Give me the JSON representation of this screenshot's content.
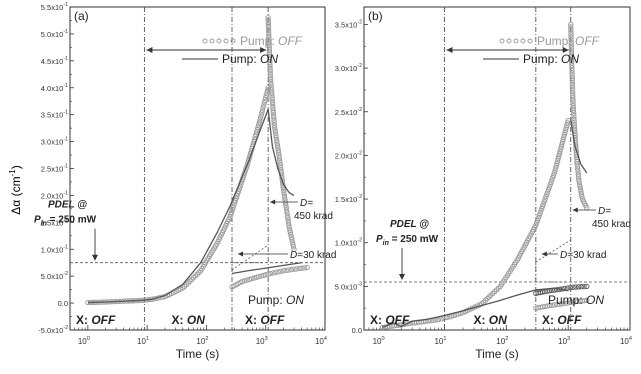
{
  "figure": {
    "ylabel_prefix": "Δα (cm",
    "ylabel_exp": "-1",
    "ylabel_suffix": ")"
  },
  "chart_data": [
    {
      "panel_label": "(a)",
      "type": "line",
      "xlabel": "Time (s)",
      "x_scale": "log",
      "xlim": [
        0.5,
        10000
      ],
      "x_tick_labels": [
        {
          "x": 1,
          "base": "10",
          "exp": "0"
        },
        {
          "x": 10,
          "base": "10",
          "exp": "1"
        },
        {
          "x": 100,
          "base": "10",
          "exp": "2"
        },
        {
          "x": 1000,
          "base": "10",
          "exp": "3"
        },
        {
          "x": 10000,
          "base": "10",
          "exp": "4"
        }
      ],
      "ylim": [
        -0.05,
        0.55
      ],
      "y_tick_labels": [
        {
          "y": -0.05,
          "mant": "-5.0x10",
          "exp": "-2"
        },
        {
          "y": 0.0,
          "mant": "0.0",
          "exp": ""
        },
        {
          "y": 0.05,
          "mant": "5.0x10",
          "exp": "-2"
        },
        {
          "y": 0.1,
          "mant": "1.0x10",
          "exp": "-1"
        },
        {
          "y": 0.15,
          "mant": "1.5x10",
          "exp": "-1"
        },
        {
          "y": 0.2,
          "mant": "2.0x10",
          "exp": "-1"
        },
        {
          "y": 0.25,
          "mant": "2.5x10",
          "exp": "-1"
        },
        {
          "y": 0.3,
          "mant": "3.0x10",
          "exp": "-1"
        },
        {
          "y": 0.35,
          "mant": "3.5x10",
          "exp": "-1"
        },
        {
          "y": 0.4,
          "mant": "4.0x10",
          "exp": "-1"
        },
        {
          "y": 0.45,
          "mant": "4.5x10",
          "exp": "-1"
        },
        {
          "y": 0.5,
          "mant": "5.0x10",
          "exp": "-1"
        },
        {
          "y": 0.55,
          "mant": "5.5x10",
          "exp": "-1"
        }
      ],
      "vlines_x": [
        9,
        270,
        1100
      ],
      "hline_y": 0.075,
      "series": [
        {
          "name": "Pump: OFF",
          "style": "markers",
          "color": "#9a9a9a",
          "x": [
            1,
            2,
            3,
            5,
            8,
            12,
            20,
            40,
            80,
            150,
            250,
            500,
            800,
            1100
          ],
          "y": [
            0.001,
            0.002,
            0.003,
            0.004,
            0.005,
            0.007,
            0.012,
            0.028,
            0.06,
            0.11,
            0.16,
            0.26,
            0.34,
            0.4
          ]
        },
        {
          "name": "Pump: ON",
          "style": "line",
          "color": "#555555",
          "x": [
            1,
            2,
            3,
            5,
            8,
            12,
            20,
            40,
            80,
            150,
            250,
            500,
            800,
            1100
          ],
          "y": [
            0.001,
            0.002,
            0.003,
            0.004,
            0.005,
            0.007,
            0.014,
            0.035,
            0.075,
            0.13,
            0.18,
            0.26,
            0.32,
            0.36
          ]
        },
        {
          "name": "",
          "style": "markers",
          "color": "#9a9a9a",
          "x": [
            1100,
            1200,
            1400,
            1700,
            2000,
            2500,
            3000
          ],
          "y": [
            0.53,
            0.42,
            0.33,
            0.27,
            0.21,
            0.14,
            0.1
          ]
        },
        {
          "name": "",
          "style": "line",
          "color": "#555555",
          "x": [
            1100,
            1300,
            1600,
            2000,
            2500,
            3000
          ],
          "y": [
            0.36,
            0.29,
            0.25,
            0.22,
            0.205,
            0.2
          ]
        },
        {
          "name": "",
          "style": "line",
          "color": "#555555",
          "x": [
            270,
            500,
            1000,
            2000,
            4000
          ],
          "y": [
            0.055,
            0.06,
            0.065,
            0.07,
            0.075
          ]
        },
        {
          "name": "",
          "style": "markers",
          "color": "#9a9a9a",
          "x": [
            270,
            400,
            700,
            1200,
            2000,
            3000,
            5000
          ],
          "y": [
            0.03,
            0.04,
            0.048,
            0.055,
            0.06,
            0.063,
            0.066
          ]
        }
      ],
      "annotations": {
        "pump_off": {
          "label": "Pump: ",
          "value": "OFF"
        },
        "pump_on": {
          "label": "Pump: ",
          "value": "ON"
        },
        "pdel_1": "PDEL @",
        "pdel_2_sym": "P",
        "pdel_2_sub": "in",
        "pdel_2_val": " = 250 mW",
        "dose_high_1": "D=",
        "dose_high_2": "450 krad",
        "dose_low": "D=30 krad",
        "pump_on_lower": "Pump: ON",
        "x_off_left": "X: OFF",
        "x_on": "X: ON",
        "x_off_right": "X: OFF"
      }
    },
    {
      "panel_label": "(b)",
      "type": "line",
      "xlabel": "Time (s)",
      "x_scale": "log",
      "xlim": [
        0.5,
        10000
      ],
      "x_tick_labels": [
        {
          "x": 1,
          "base": "10",
          "exp": "0"
        },
        {
          "x": 10,
          "base": "10",
          "exp": "1"
        },
        {
          "x": 100,
          "base": "10",
          "exp": "2"
        },
        {
          "x": 1000,
          "base": "10",
          "exp": "3"
        },
        {
          "x": 10000,
          "base": "10",
          "exp": "4"
        }
      ],
      "ylim": [
        0,
        0.037
      ],
      "y_tick_labels": [
        {
          "y": 0.0,
          "mant": "0.0",
          "exp": ""
        },
        {
          "y": 0.005,
          "mant": "5.0x10",
          "exp": "-3"
        },
        {
          "y": 0.01,
          "mant": "1.0x10",
          "exp": "-2"
        },
        {
          "y": 0.015,
          "mant": "1.5x10",
          "exp": "-2"
        },
        {
          "y": 0.02,
          "mant": "2.0x10",
          "exp": "-2"
        },
        {
          "y": 0.025,
          "mant": "2.5x10",
          "exp": "-2"
        },
        {
          "y": 0.03,
          "mant": "3.0x10",
          "exp": "-2"
        },
        {
          "y": 0.035,
          "mant": "3.5x10",
          "exp": "-2"
        }
      ],
      "vlines_x": [
        10,
        300,
        1100
      ],
      "hline_y": 0.0055,
      "series": [
        {
          "name": "Pump: OFF",
          "style": "markers",
          "color": "#9a9a9a",
          "x": [
            1,
            2,
            3,
            5,
            8,
            12,
            20,
            40,
            80,
            150,
            300,
            600,
            1000
          ],
          "y": [
            0.0003,
            0.0006,
            0.0008,
            0.001,
            0.0012,
            0.0015,
            0.002,
            0.003,
            0.005,
            0.008,
            0.012,
            0.018,
            0.024
          ]
        },
        {
          "name": "Pump: ON",
          "style": "line",
          "color": "#555555",
          "x": [
            1,
            1.5,
            2,
            3,
            5,
            8,
            12,
            20,
            40,
            80,
            150,
            300,
            600,
            1000
          ],
          "y": [
            0.0003,
            0.0008,
            0.0004,
            0.001,
            0.0012,
            0.0015,
            0.0018,
            0.0022,
            0.0028,
            0.0034,
            0.004,
            0.0046,
            0.0048,
            0.0045
          ]
        },
        {
          "name": "",
          "style": "markers",
          "color": "#9a9a9a",
          "x": [
            1100,
            1150,
            1200,
            1300,
            1400,
            1500,
            1700,
            2000
          ],
          "y": [
            0.035,
            0.03,
            0.026,
            0.022,
            0.019,
            0.017,
            0.015,
            0.014
          ]
        },
        {
          "name": "",
          "style": "line",
          "color": "#555555",
          "x": [
            1100,
            1300,
            1600,
            2000
          ],
          "y": [
            0.024,
            0.021,
            0.019,
            0.018
          ]
        },
        {
          "name": "",
          "style": "markers",
          "color": "#9a9a9a",
          "x": [
            300,
            500,
            800,
            1200,
            2000
          ],
          "y": [
            0.0025,
            0.0028,
            0.003,
            0.0032,
            0.0034
          ]
        },
        {
          "name": "",
          "style": "markers",
          "color": "#555555",
          "x": [
            300,
            500,
            800,
            1200,
            2000
          ],
          "y": [
            0.0042,
            0.0045,
            0.0047,
            0.0049,
            0.005
          ]
        }
      ],
      "annotations": {
        "pump_off": {
          "label": "Pump: ",
          "value": "OFF"
        },
        "pump_on": {
          "label": "Pump: ",
          "value": "ON"
        },
        "pdel_1": "PDEL @",
        "pdel_2_sym": "P",
        "pdel_2_sub": "in",
        "pdel_2_val": " = 250 mW",
        "dose_high_1": "D=",
        "dose_high_2": "450 krad",
        "dose_low": "D=30 krad",
        "pump_on_lower": "Pump: ON",
        "x_off_left": "X: OFF",
        "x_on": "X: ON",
        "x_off_right": "X: OFF"
      }
    }
  ]
}
